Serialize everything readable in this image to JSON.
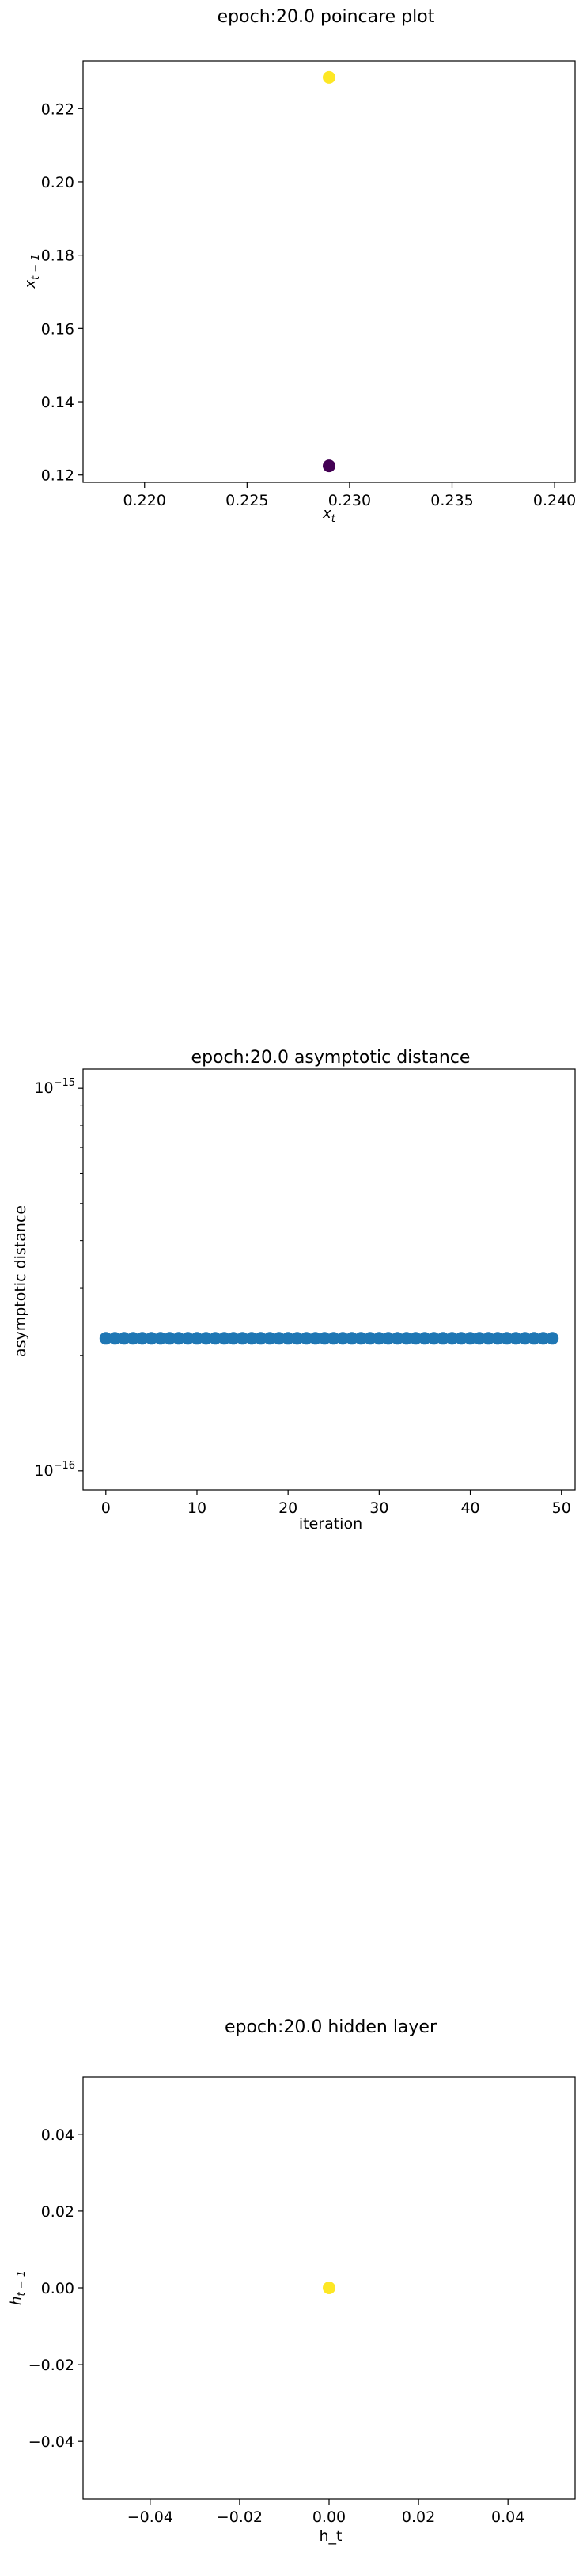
{
  "chart_data": [
    {
      "type": "scatter",
      "title": "epoch:20.0 poincare plot",
      "xlabel_base": "x",
      "xlabel_sub": "t",
      "ylabel_base": "x",
      "ylabel_sub": "t − 1",
      "xlim": [
        0.217,
        0.241
      ],
      "ylim": [
        0.118,
        0.233
      ],
      "xticks": [
        0.22,
        0.225,
        0.23,
        0.235,
        0.24
      ],
      "xtick_labels": [
        "0.220",
        "0.225",
        "0.230",
        "0.235",
        "0.240"
      ],
      "yticks": [
        0.12,
        0.14,
        0.16,
        0.18,
        0.2,
        0.22
      ],
      "ytick_labels": [
        "0.12",
        "0.14",
        "0.16",
        "0.18",
        "0.20",
        "0.22"
      ],
      "points": [
        {
          "x": 0.229,
          "y": 0.2285,
          "color": "#fde725"
        },
        {
          "x": 0.229,
          "y": 0.1225,
          "color": "#440154"
        }
      ],
      "grid": false
    },
    {
      "type": "scatter",
      "title": "epoch:20.0 asymptotic distance",
      "xlabel": "iteration",
      "ylabel": "asymptotic distance",
      "yscale": "log",
      "xlim": [
        -2.5,
        51.5
      ],
      "ylim_log10": [
        -16.05,
        -14.95
      ],
      "xticks": [
        0,
        10,
        20,
        30,
        40,
        50
      ],
      "xtick_labels": [
        "0",
        "10",
        "20",
        "30",
        "40",
        "50"
      ],
      "yticks_log10": [
        -15,
        -16
      ],
      "ytick_base": "10",
      "ytick_exps": [
        "−15",
        "−16"
      ],
      "x": [
        0,
        1,
        2,
        3,
        4,
        5,
        6,
        7,
        8,
        9,
        10,
        11,
        12,
        13,
        14,
        15,
        16,
        17,
        18,
        19,
        20,
        21,
        22,
        23,
        24,
        25,
        26,
        27,
        28,
        29,
        30,
        31,
        32,
        33,
        34,
        35,
        36,
        37,
        38,
        39,
        40,
        41,
        42,
        43,
        44,
        45,
        46,
        47,
        48,
        49
      ],
      "y": 2.22e-16,
      "color": "#1f77b4",
      "grid": false
    },
    {
      "type": "scatter",
      "title": "epoch:20.0 hidden layer",
      "xlabel": "h_t",
      "ylabel_base": "h",
      "ylabel_sub": "t − 1",
      "xlim": [
        -0.055,
        0.055
      ],
      "ylim": [
        -0.055,
        0.055
      ],
      "xticks": [
        -0.04,
        -0.02,
        0.0,
        0.02,
        0.04
      ],
      "xtick_labels": [
        "−0.04",
        "−0.02",
        "0.00",
        "0.02",
        "0.04"
      ],
      "yticks": [
        -0.04,
        -0.02,
        0.0,
        0.02,
        0.04
      ],
      "ytick_labels": [
        "−0.04",
        "−0.02",
        "0.00",
        "0.02",
        "0.04"
      ],
      "points": [
        {
          "x": 0.0,
          "y": 0.0,
          "color": "#fde725"
        }
      ],
      "grid": false
    }
  ]
}
